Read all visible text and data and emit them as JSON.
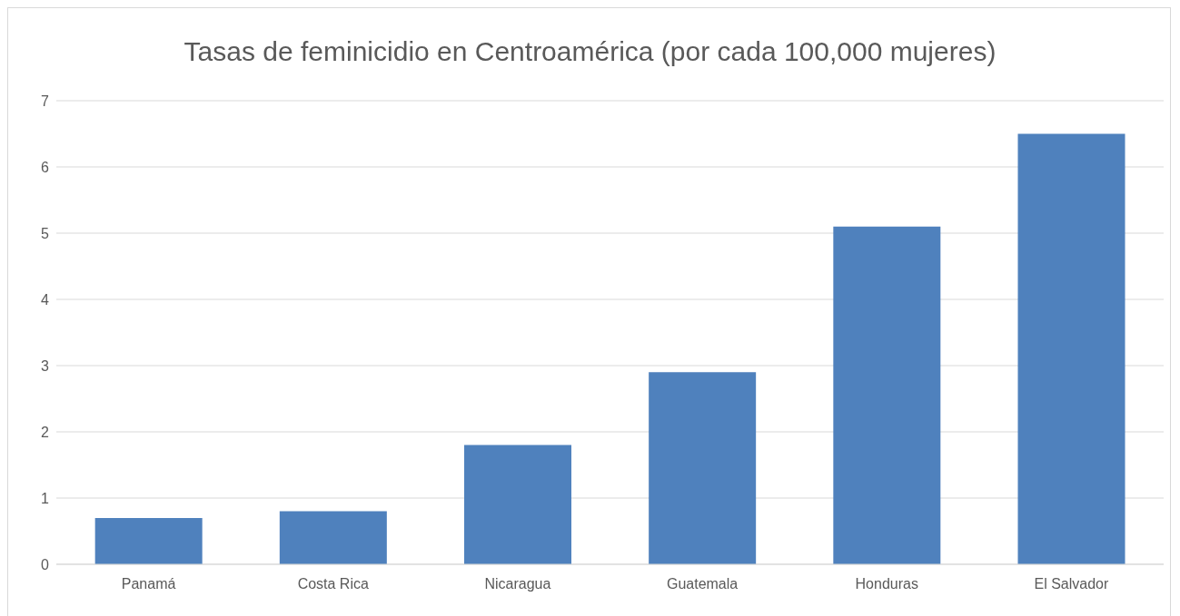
{
  "chart_data": {
    "type": "bar",
    "title": "Tasas de feminicidio en Centroamérica (por cada 100,000 mujeres)",
    "categories": [
      "Panamá",
      "Costa Rica",
      "Nicaragua",
      "Guatemala",
      "Honduras",
      "El Salvador"
    ],
    "values": [
      0.7,
      0.8,
      1.8,
      2.9,
      5.1,
      6.5
    ],
    "color": "#4f81bd",
    "ylim": [
      0,
      7
    ],
    "yticks": [
      0,
      1,
      2,
      3,
      4,
      5,
      6,
      7
    ],
    "grid": "y"
  }
}
